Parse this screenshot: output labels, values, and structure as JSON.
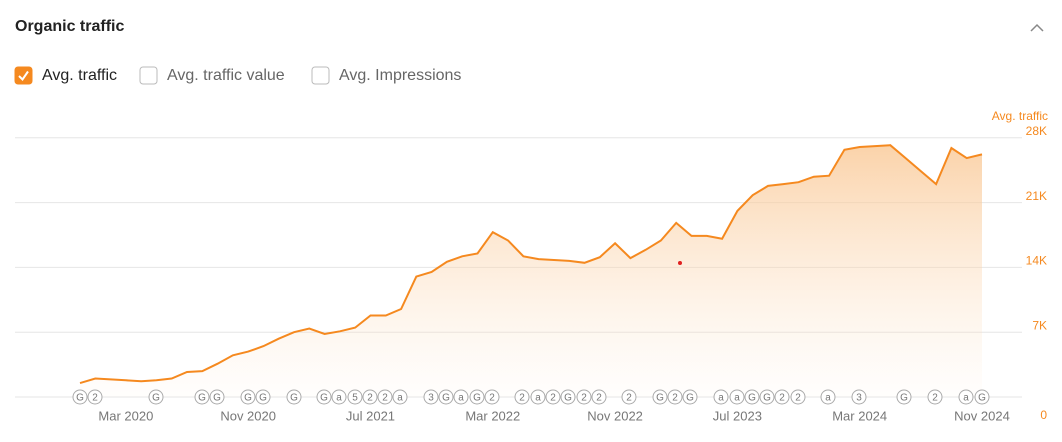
{
  "header": {
    "title": "Organic traffic"
  },
  "options": [
    {
      "label": "Avg. traffic",
      "checked": true
    },
    {
      "label": "Avg. traffic value",
      "checked": false
    },
    {
      "label": "Avg. Impressions",
      "checked": false
    }
  ],
  "chart_data": {
    "type": "area",
    "y_axis_label": "Avg. traffic",
    "x": [
      "2019-12",
      "2020-01",
      "2020-02",
      "2020-03",
      "2020-04",
      "2020-05",
      "2020-06",
      "2020-07",
      "2020-08",
      "2020-09",
      "2020-10",
      "2020-11",
      "2020-12",
      "2021-01",
      "2021-02",
      "2021-03",
      "2021-04",
      "2021-05",
      "2021-06",
      "2021-07",
      "2021-08",
      "2021-09",
      "2021-10",
      "2021-11",
      "2021-12",
      "2022-01",
      "2022-02",
      "2022-03",
      "2022-04",
      "2022-05",
      "2022-06",
      "2022-07",
      "2022-08",
      "2022-09",
      "2022-10",
      "2022-11",
      "2022-12",
      "2023-01",
      "2023-02",
      "2023-03",
      "2023-04",
      "2023-05",
      "2023-06",
      "2023-07",
      "2023-08",
      "2023-09",
      "2023-10",
      "2023-11",
      "2023-12",
      "2024-01",
      "2024-02",
      "2024-03",
      "2024-04",
      "2024-05",
      "2024-06",
      "2024-07",
      "2024-08",
      "2024-09",
      "2024-10",
      "2024-11"
    ],
    "series": [
      {
        "name": "Avg. traffic",
        "color": "#f5891f",
        "values": [
          1500,
          2000,
          1900,
          1800,
          1700,
          1800,
          2000,
          2700,
          2800,
          3600,
          4500,
          4900,
          5500,
          6300,
          7000,
          7400,
          6800,
          7100,
          7500,
          8800,
          8800,
          9500,
          13000,
          13500,
          14600,
          15200,
          15500,
          17800,
          16900,
          15200,
          14900,
          14800,
          14700,
          14500,
          15100,
          16600,
          15000,
          15900,
          16900,
          18800,
          17400,
          17400,
          17100,
          20100,
          21800,
          22800,
          23000,
          23200,
          23800,
          23900,
          26700,
          27000,
          27100,
          27200,
          25800,
          24400,
          23000,
          26900,
          25800,
          26200
        ]
      }
    ],
    "xticks": [
      {
        "value": "2020-03",
        "label": "Mar 2020"
      },
      {
        "value": "2020-11",
        "label": "Nov 2020"
      },
      {
        "value": "2021-07",
        "label": "Jul 2021"
      },
      {
        "value": "2022-03",
        "label": "Mar 2022"
      },
      {
        "value": "2022-11",
        "label": "Nov 2022"
      },
      {
        "value": "2023-07",
        "label": "Jul 2023"
      },
      {
        "value": "2024-03",
        "label": "Mar 2024"
      },
      {
        "value": "2024-11",
        "label": "Nov 2024"
      }
    ],
    "ylim": [
      0,
      31000
    ],
    "yticks": [
      0,
      {
        "value": 7000,
        "label": "7K"
      },
      {
        "value": 14000,
        "label": "14K"
      },
      {
        "value": 21000,
        "label": "21K"
      },
      {
        "value": 28000,
        "label": "28K"
      }
    ],
    "grid": true,
    "annotations": [
      "G",
      "2",
      "G",
      "G",
      "G",
      "G",
      "G",
      "G",
      "G",
      "a",
      "5",
      "2",
      "2",
      "a",
      "3",
      "G",
      "a",
      "G",
      "2",
      "2",
      "a",
      "2",
      "G",
      "2",
      "2",
      "2",
      "G",
      "2",
      "G",
      "a",
      "a",
      "G",
      "G",
      "2",
      "2",
      "a",
      "3",
      "G",
      "2",
      "a",
      "G"
    ]
  }
}
